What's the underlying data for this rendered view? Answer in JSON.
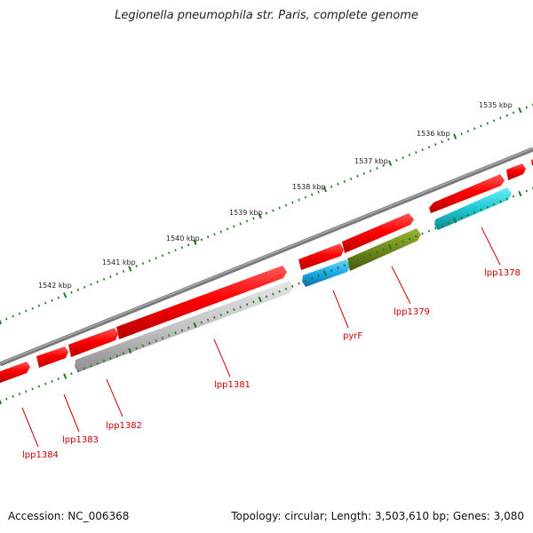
{
  "title": "Legionella pneumophila str. Paris, complete genome",
  "footer": {
    "accession": "Accession: NC_006368",
    "summary": "Topology: circular; Length: 3,503,610 bp; Genes: 3,080"
  },
  "colors": {
    "backbone": "#7a7a7a",
    "cds_forward": "#ff0000",
    "gene_reverse": "#c8c8c8",
    "rrna_like": "#22c6d6",
    "blue_gene": "#1aaeea",
    "olive_gene": "#6f8a1c",
    "label": "#cc0000",
    "tick": "#1f7a1f"
  },
  "scale_labels": [
    {
      "text": "1535 kbp"
    },
    {
      "text": "1536 kbp"
    },
    {
      "text": "1537 kbp"
    },
    {
      "text": "1538 kbp"
    },
    {
      "text": "1539 kbp"
    },
    {
      "text": "1540 kbp"
    },
    {
      "text": "1541 kbp"
    },
    {
      "text": "1542 kbp"
    }
  ],
  "gene_labels": [
    {
      "text": "lpp1378"
    },
    {
      "text": "lpp1379"
    },
    {
      "text": "pyrF"
    },
    {
      "text": "lpp1381"
    },
    {
      "text": "lpp1382"
    },
    {
      "text": "lpp1383"
    },
    {
      "text": "lpp1384"
    }
  ]
}
